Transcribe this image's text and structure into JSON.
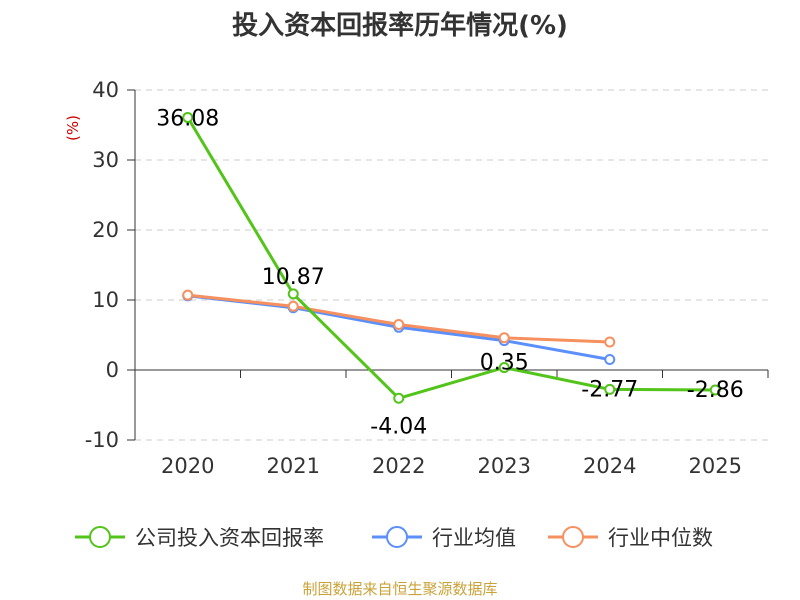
{
  "chart_data": {
    "type": "line",
    "title": "投入资本回报率历年情况(%)",
    "unit_label": "(%)",
    "categories": [
      "2020",
      "2021",
      "2022",
      "2023",
      "2024",
      "2025"
    ],
    "ylim": [
      -10,
      40
    ],
    "yticks": [
      "40",
      "30",
      "20",
      "10",
      "0",
      "-10"
    ],
    "grid": true,
    "legend_position": "bottom",
    "series": [
      {
        "name": "公司投入资本回报率",
        "color": "#52c41a",
        "values": [
          36.08,
          10.87,
          -4.04,
          0.35,
          -2.77,
          -2.86
        ],
        "labels": [
          "36.08",
          "10.87",
          "-4.04",
          "0.35",
          "-2.77",
          "-2.86"
        ]
      },
      {
        "name": "行业均值",
        "color": "#5b8ff9",
        "values": [
          10.6,
          8.9,
          6.1,
          4.2,
          1.5,
          null
        ]
      },
      {
        "name": "行业中位数",
        "color": "#f6905f",
        "values": [
          10.7,
          9.1,
          6.5,
          4.6,
          4.0,
          null
        ]
      }
    ],
    "source": "制图数据来自恒生聚源数据库"
  }
}
